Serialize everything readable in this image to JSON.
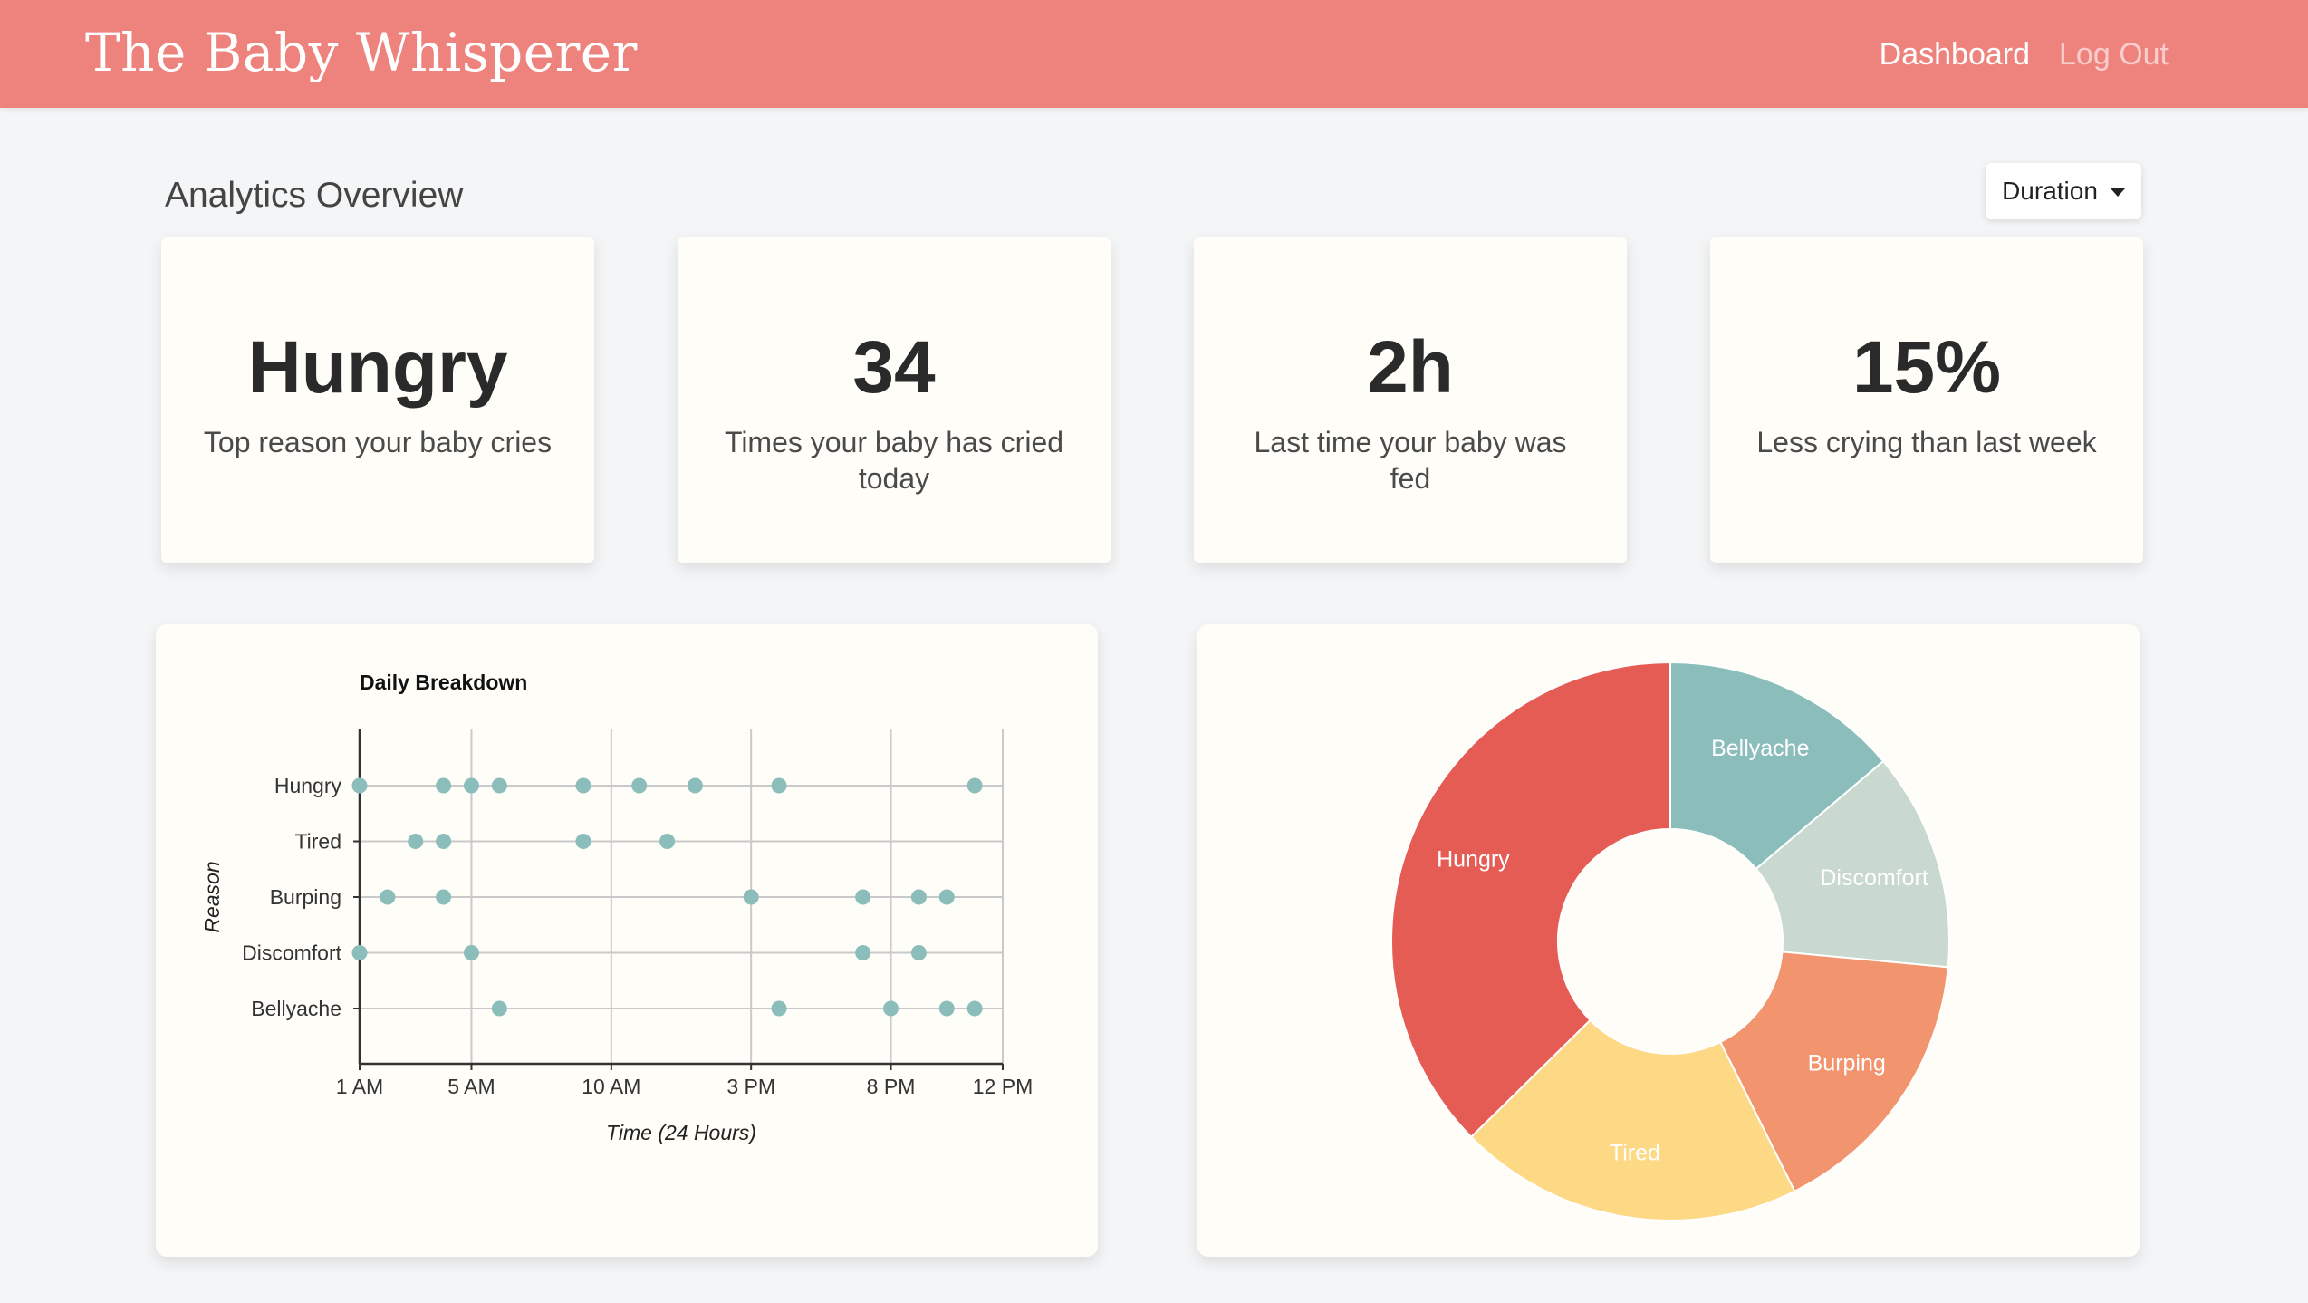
{
  "app": {
    "brand": "The Baby Whisperer"
  },
  "nav": {
    "dashboard": "Dashboard",
    "logout": "Log Out"
  },
  "overview": {
    "title": "Analytics Overview",
    "duration_label": "Duration"
  },
  "stats": [
    {
      "value": "Hungry",
      "label": "Top reason your baby cries"
    },
    {
      "value": "34",
      "label": "Times your baby has cried today"
    },
    {
      "value": "2h",
      "label": "Last time your baby was fed"
    },
    {
      "value": "15%",
      "label": "Less crying than last week"
    }
  ],
  "colors": {
    "navbar": "#ee837e",
    "dot": "#8bbdbb",
    "hungry": "#e55c54",
    "bellyache": "#8bbdbb",
    "discomfort": "#c9d9d0",
    "burping": "#f2956e",
    "tired": "#fed985"
  },
  "chart_data": [
    {
      "type": "scatter",
      "title": "Daily Breakdown",
      "xlabel": "Time (24 Hours)",
      "ylabel": "Reason",
      "x_ticks": [
        {
          "value": 1,
          "label": "1 AM"
        },
        {
          "value": 5,
          "label": "5 AM"
        },
        {
          "value": 10,
          "label": "10 AM"
        },
        {
          "value": 15,
          "label": "3 PM"
        },
        {
          "value": 20,
          "label": "8 PM"
        },
        {
          "value": 24,
          "label": "12 PM"
        }
      ],
      "xlim": [
        1,
        24
      ],
      "categories": [
        "Hungry",
        "Tired",
        "Burping",
        "Discomfort",
        "Bellyache"
      ],
      "grid": true,
      "points": [
        {
          "category": "Hungry",
          "x": [
            1,
            4,
            5,
            6,
            9,
            11,
            13,
            16,
            23
          ]
        },
        {
          "category": "Tired",
          "x": [
            3,
            4,
            9,
            12
          ]
        },
        {
          "category": "Burping",
          "x": [
            2,
            4,
            15,
            19,
            21,
            22
          ]
        },
        {
          "category": "Discomfort",
          "x": [
            1,
            5,
            19,
            21
          ]
        },
        {
          "category": "Bellyache",
          "x": [
            6,
            16,
            20,
            22,
            23
          ]
        }
      ]
    },
    {
      "type": "pie",
      "donut": true,
      "slices": [
        {
          "label": "Bellyache",
          "value": 4.7
        },
        {
          "label": "Discomfort",
          "value": 4.3
        },
        {
          "label": "Burping",
          "value": 5.5
        },
        {
          "label": "Tired",
          "value": 6.8
        },
        {
          "label": "Hungry",
          "value": 12.7
        }
      ]
    }
  ]
}
